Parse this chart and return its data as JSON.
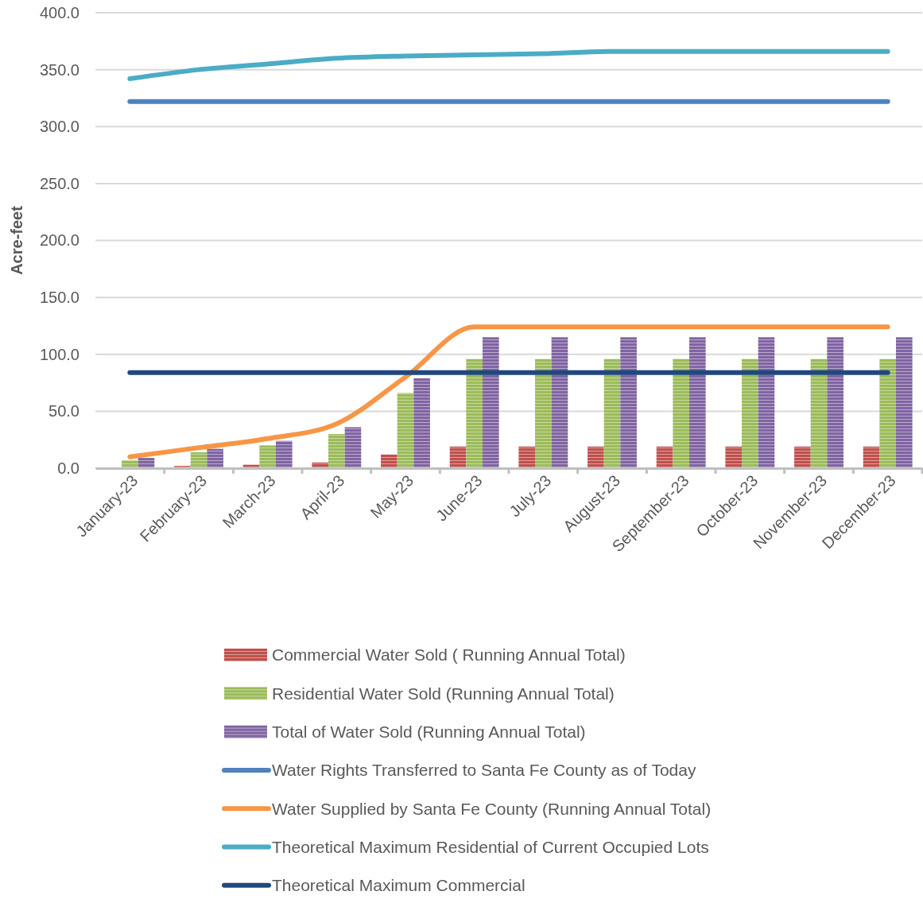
{
  "chart_data": {
    "type": "bar",
    "ylabel": "Acre-feet",
    "categories": [
      "January-23",
      "February-23",
      "March-23",
      "April-23",
      "May-23",
      "June-23",
      "July-23",
      "August-23",
      "September-23",
      "October-23",
      "November-23",
      "December-23"
    ],
    "series": [
      {
        "name": "Commercial Water Sold ( Running Annual Total)",
        "color": "#c0504d",
        "values": [
          0,
          2,
          3,
          5,
          12,
          19,
          19,
          19,
          19,
          19,
          19,
          19
        ]
      },
      {
        "name": "Residential Water Sold (Running Annual Total)",
        "color": "#9bbb59",
        "values": [
          7,
          14,
          20,
          30,
          66,
          96,
          96,
          96,
          96,
          96,
          96,
          96
        ]
      },
      {
        "name": "Total of Water Sold (Running Annual Total)",
        "color": "#8064a2",
        "values": [
          9,
          17,
          24,
          36,
          79,
          115,
          115,
          115,
          115,
          115,
          115,
          115
        ]
      },
      {
        "name": "Water Rights Transferred to Santa Fe County as of Today",
        "type": "line",
        "color": "#4f81bd",
        "values": [
          322,
          322,
          322,
          322,
          322,
          322,
          322,
          322,
          322,
          322,
          322,
          322
        ]
      },
      {
        "name": "Water Supplied by Santa Fe County (Running Annual Total)",
        "type": "line",
        "color": "#f79646",
        "values": [
          10,
          18,
          26,
          39,
          80,
          124,
          124,
          124,
          124,
          124,
          124,
          124
        ]
      },
      {
        "name": "Theoretical Maximum Residential of Current Occupied  Lots",
        "type": "line",
        "color": "#4bacc6",
        "values": [
          342,
          350,
          355,
          360,
          362,
          363,
          364,
          366,
          366,
          366,
          366,
          366
        ]
      },
      {
        "name": "Theoretical Maximum Commercial",
        "type": "line",
        "color": "#1f497d",
        "values": [
          84,
          84,
          84,
          84,
          84,
          84,
          84,
          84,
          84,
          84,
          84,
          84
        ]
      }
    ],
    "ylim": [
      0,
      400
    ],
    "yticks": [
      {
        "value": 0,
        "label": "0.0"
      },
      {
        "value": 50,
        "label": "50.0"
      },
      {
        "value": 100,
        "label": "100.0"
      },
      {
        "value": 150,
        "label": "150.0"
      },
      {
        "value": 200,
        "label": "200.0"
      },
      {
        "value": 250,
        "label": "250.0"
      },
      {
        "value": 300,
        "label": "300.0"
      },
      {
        "value": 350,
        "label": "350.0"
      },
      {
        "value": 400,
        "label": "400.0"
      }
    ],
    "grid": "y",
    "legend": "bottom",
    "marker": "none",
    "line_style": "solid"
  }
}
